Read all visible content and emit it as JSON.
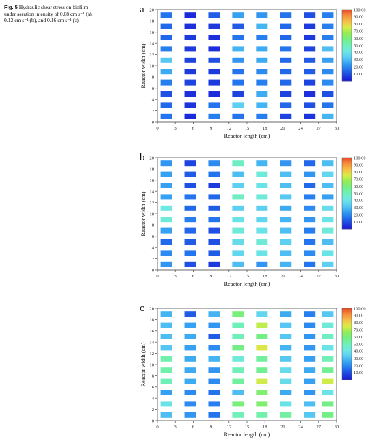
{
  "caption": {
    "fig_label": "Fig. 5",
    "text": "Hydraulic shear stress on biofilm under aeration intensity of 0.08 cm s⁻¹ (a), 0.12 cm s⁻¹ (b), and 0.16 cm s⁻¹ (c)"
  },
  "colors": {
    "scale": [
      "#1a1ad6",
      "#1e46e0",
      "#2478ee",
      "#38a6f2",
      "#5ccdf2",
      "#6ee8e4",
      "#70f0b8",
      "#74ee84",
      "#92ec58",
      "#d8ec48",
      "#f5c04a",
      "#f58c3a",
      "#e84a2c"
    ]
  },
  "chart_data": [
    {
      "type": "heatmap",
      "panel_label": "a",
      "xlabel": "Reactor length (cm)",
      "ylabel": "Reactor width (cm)",
      "xlim": [
        0,
        30
      ],
      "ylim": [
        0,
        20
      ],
      "xticks": [
        0,
        3,
        6,
        9,
        12,
        15,
        18,
        21,
        24,
        27,
        30
      ],
      "yticks": [
        0,
        2,
        4,
        6,
        8,
        10,
        12,
        14,
        16,
        18,
        20
      ],
      "colorbar_ticks": [
        "10.00",
        "20.00",
        "30.00",
        "40.00",
        "50.00",
        "60.00",
        "70.00",
        "80.00",
        "90.00",
        "100.00"
      ],
      "colorbar_range": [
        0,
        100
      ],
      "x": [
        1.5,
        5.5,
        9.5,
        13.5,
        17.5,
        21.5,
        25.5,
        28.5
      ],
      "y": [
        1,
        3,
        5,
        7,
        9,
        11,
        13,
        15,
        17,
        19
      ],
      "values": [
        [
          16,
          3,
          18,
          16,
          18,
          8,
          5,
          28
        ],
        [
          14,
          5,
          16,
          34,
          28,
          14,
          10,
          16
        ],
        [
          10,
          4,
          3,
          8,
          26,
          8,
          4,
          10
        ],
        [
          18,
          8,
          6,
          16,
          18,
          14,
          8,
          20
        ],
        [
          26,
          6,
          6,
          16,
          20,
          14,
          12,
          20
        ],
        [
          32,
          8,
          10,
          22,
          26,
          14,
          12,
          24
        ],
        [
          18,
          6,
          4,
          28,
          26,
          16,
          8,
          30
        ],
        [
          14,
          6,
          4,
          16,
          18,
          14,
          6,
          18
        ],
        [
          14,
          4,
          6,
          12,
          28,
          14,
          6,
          18
        ],
        [
          16,
          3,
          12,
          24,
          22,
          16,
          10,
          18
        ]
      ]
    },
    {
      "type": "heatmap",
      "panel_label": "b",
      "xlabel": "Reactor length (cm)",
      "ylabel": "Reactor width (cm)",
      "xlim": [
        0,
        30
      ],
      "ylim": [
        0,
        20
      ],
      "xticks": [
        0,
        3,
        6,
        9,
        12,
        15,
        18,
        21,
        24,
        27,
        30
      ],
      "yticks": [
        0,
        2,
        4,
        6,
        8,
        10,
        12,
        14,
        16,
        18,
        20
      ],
      "colorbar_ticks": [
        "10.00",
        "20.00",
        "30.00",
        "40.00",
        "50.00",
        "60.00",
        "70.00",
        "80.00",
        "90.00",
        "100.00"
      ],
      "colorbar_range": [
        0,
        100
      ],
      "x": [
        1.5,
        5.5,
        9.5,
        13.5,
        17.5,
        21.5,
        25.5,
        28.5
      ],
      "y": [
        1,
        3,
        5,
        7,
        9,
        11,
        13,
        15,
        17,
        19
      ],
      "values": [
        [
          22,
          10,
          6,
          30,
          22,
          28,
          16,
          34
        ],
        [
          20,
          16,
          12,
          36,
          40,
          30,
          20,
          40
        ],
        [
          14,
          12,
          10,
          38,
          44,
          34,
          16,
          30
        ],
        [
          24,
          14,
          10,
          44,
          40,
          30,
          18,
          44
        ],
        [
          44,
          18,
          16,
          40,
          36,
          28,
          22,
          40
        ],
        [
          42,
          14,
          12,
          34,
          34,
          26,
          20,
          38
        ],
        [
          24,
          16,
          14,
          48,
          44,
          32,
          18,
          24
        ],
        [
          24,
          10,
          6,
          34,
          40,
          30,
          14,
          30
        ],
        [
          24,
          12,
          16,
          30,
          44,
          30,
          22,
          36
        ],
        [
          22,
          8,
          20,
          48,
          28,
          22,
          14,
          30
        ]
      ]
    },
    {
      "type": "heatmap",
      "panel_label": "c",
      "xlabel": "Reactor length (cm)",
      "ylabel": "Reactor width (cm)",
      "xlim": [
        0,
        30
      ],
      "ylim": [
        0,
        20
      ],
      "xticks": [
        0,
        3,
        6,
        9,
        12,
        15,
        18,
        21,
        24,
        27,
        30
      ],
      "yticks": [
        0,
        2,
        4,
        6,
        8,
        10,
        12,
        14,
        16,
        18,
        20
      ],
      "colorbar_ticks": [
        "10.00",
        "20.00",
        "30.00",
        "40.00",
        "50.00",
        "60.00",
        "70.00",
        "80.00",
        "90.00",
        "100.00"
      ],
      "colorbar_range": [
        0,
        100
      ],
      "x": [
        1.5,
        5.5,
        9.5,
        13.5,
        17.5,
        21.5,
        25.5,
        28.5
      ],
      "y": [
        1,
        3,
        5,
        7,
        9,
        11,
        13,
        15,
        17,
        19
      ],
      "values": [
        [
          30,
          22,
          16,
          50,
          52,
          54,
          32,
          58
        ],
        [
          40,
          20,
          18,
          60,
          62,
          40,
          30,
          58
        ],
        [
          24,
          20,
          16,
          30,
          62,
          26,
          22,
          40
        ],
        [
          50,
          26,
          20,
          54,
          74,
          38,
          24,
          74
        ],
        [
          52,
          26,
          22,
          50,
          56,
          38,
          26,
          56
        ],
        [
          52,
          26,
          28,
          44,
          54,
          32,
          24,
          50
        ],
        [
          32,
          24,
          20,
          58,
          76,
          28,
          22,
          40
        ],
        [
          30,
          26,
          12,
          50,
          58,
          32,
          22,
          48
        ],
        [
          30,
          24,
          22,
          50,
          72,
          32,
          20,
          44
        ],
        [
          28,
          12,
          28,
          60,
          36,
          26,
          18,
          32
        ]
      ]
    }
  ]
}
